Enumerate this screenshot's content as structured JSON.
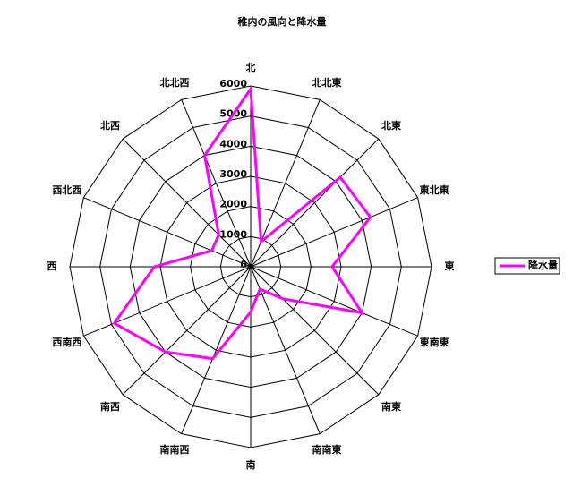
{
  "chart_data": {
    "type": "radar",
    "title": "稚内の風向と降水量",
    "categories": [
      "北",
      "北北東",
      "北東",
      "東北東",
      "東",
      "東南東",
      "南東",
      "南南東",
      "南",
      "南南西",
      "南西",
      "西南西",
      "西",
      "西北西",
      "北西",
      "北北西"
    ],
    "series": [
      {
        "name": "降水量",
        "color": "#ff00ff",
        "values": [
          5900,
          900,
          4200,
          4300,
          2700,
          4000,
          1500,
          800,
          1500,
          3300,
          4000,
          4900,
          3200,
          1400,
          1500,
          4000
        ]
      }
    ],
    "ylim": [
      0,
      6000
    ],
    "yticks": [
      0,
      1000,
      2000,
      3000,
      4000,
      5000,
      6000
    ],
    "grid": true,
    "legend": "right"
  }
}
